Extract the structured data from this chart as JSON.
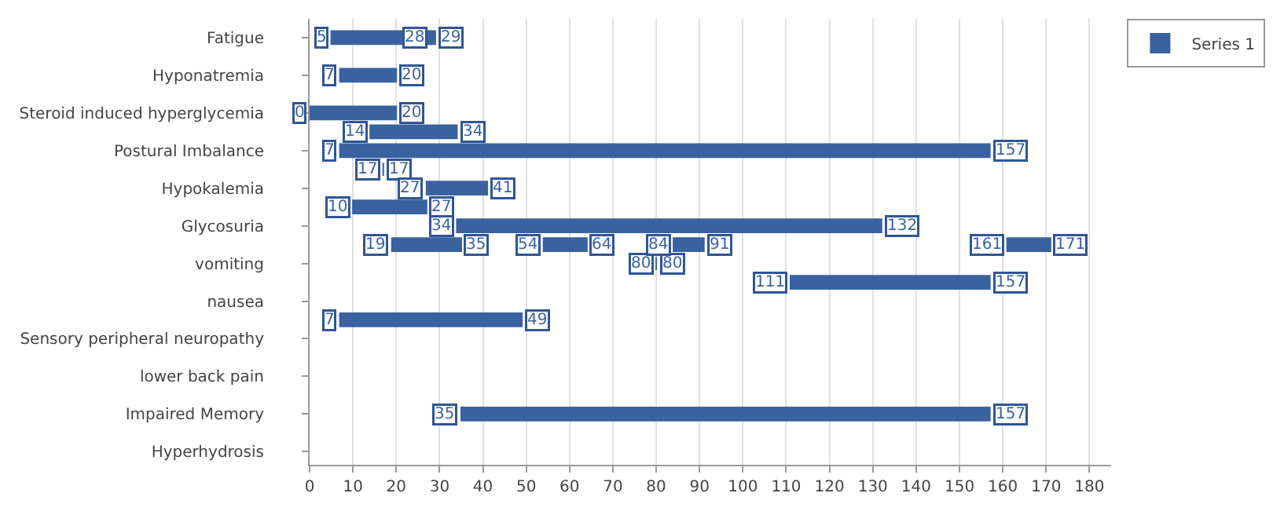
{
  "chart_data": {
    "type": "bar",
    "orientation": "horizontal",
    "categories": [
      "Fatigue",
      null,
      "Hyponatremia",
      null,
      "Steroid induced hyperglycemia",
      null,
      "Postural Imbalance",
      null,
      "Hypokalemia",
      null,
      "Glycosuria",
      null,
      "vomiting",
      null,
      "nausea",
      null,
      "Sensory peripheral neuropathy",
      null,
      "lower back pain",
      null,
      "Impaired Memory",
      null,
      "Hyperhydrosis"
    ],
    "series": [
      {
        "name": "Series 1",
        "color": "#3a62a0",
        "base": [
          5,
          null,
          7,
          null,
          0,
          14,
          7,
          17,
          27,
          10,
          34,
          19,
          80,
          111,
          null,
          7,
          null,
          null,
          null,
          null,
          35,
          null,
          null
        ],
        "values": [
          23,
          null,
          13,
          null,
          20,
          20,
          150,
          0,
          14,
          17,
          98,
          16,
          0,
          46,
          null,
          42,
          null,
          null,
          null,
          null,
          122,
          null,
          null
        ],
        "value_labels": [
          null,
          null,
          "20",
          null,
          "20",
          "34",
          "157",
          "17",
          "41",
          "27",
          "132",
          "35",
          "80",
          "157",
          null,
          "49",
          null,
          null,
          null,
          null,
          "157",
          null,
          null
        ]
      },
      {
        "color": "#3a62a0",
        "base": [
          28,
          null,
          null,
          null,
          null,
          null,
          null,
          null,
          null,
          null,
          null,
          54,
          null,
          null,
          null,
          null,
          null,
          null,
          null,
          null,
          null,
          null,
          null
        ],
        "values": [
          1,
          null,
          null,
          null,
          null,
          null,
          null,
          null,
          null,
          null,
          null,
          10,
          null,
          null,
          null,
          null,
          null,
          null,
          null,
          null,
          null,
          null,
          null
        ],
        "value_labels": [
          "29",
          null,
          null,
          null,
          null,
          null,
          null,
          null,
          null,
          null,
          null,
          "64",
          null,
          null,
          null,
          null,
          null,
          null,
          null,
          null,
          null,
          null,
          null
        ]
      },
      {
        "color": "#3a62a0",
        "base": [
          null,
          null,
          null,
          null,
          null,
          null,
          null,
          null,
          null,
          null,
          null,
          84,
          null,
          null,
          null,
          null,
          null,
          null,
          null,
          null,
          null,
          null,
          null
        ],
        "values": [
          null,
          null,
          null,
          null,
          null,
          null,
          null,
          null,
          null,
          null,
          null,
          7,
          null,
          null,
          null,
          null,
          null,
          null,
          null,
          null,
          null,
          null,
          null
        ],
        "value_labels": [
          null,
          null,
          null,
          null,
          null,
          null,
          null,
          null,
          null,
          null,
          null,
          "91",
          null,
          null,
          null,
          null,
          null,
          null,
          null,
          null,
          null,
          null,
          null
        ]
      },
      {
        "color": "#3a62a0",
        "base": [
          null,
          null,
          null,
          null,
          null,
          null,
          null,
          null,
          null,
          null,
          null,
          161,
          null,
          null,
          null,
          null,
          null,
          null,
          null,
          null,
          null,
          null,
          null
        ],
        "values": [
          null,
          null,
          null,
          null,
          null,
          null,
          null,
          null,
          null,
          null,
          null,
          10,
          null,
          null,
          null,
          null,
          null,
          null,
          null,
          null,
          null,
          null,
          null
        ],
        "value_labels": [
          null,
          null,
          null,
          null,
          null,
          null,
          null,
          null,
          null,
          null,
          null,
          "171",
          null,
          null,
          null,
          null,
          null,
          null,
          null,
          null,
          null,
          null,
          null
        ]
      }
    ],
    "annotations": [
      {
        "text": "5",
        "x": 5
      },
      {
        "text": "7",
        "x": 7
      },
      {
        "text": "0",
        "x": 0
      },
      {
        "text": "14",
        "x": 14
      },
      {
        "text": "7",
        "x": 7
      },
      {
        "text": "17",
        "x": 17
      },
      {
        "text": "27",
        "x": 27
      },
      {
        "text": "10",
        "x": 10
      },
      {
        "text": "34",
        "x": 34
      },
      {
        "text": "19",
        "x": 19
      },
      {
        "text": "80",
        "x": 80
      },
      {
        "text": "111",
        "x": 111
      },
      {
        "text": "7",
        "x": 7
      },
      {
        "text": "35",
        "x": 35
      },
      {
        "text": "28",
        "x": 28
      },
      {
        "text": "54",
        "x": 54
      },
      {
        "text": "84",
        "x": 84
      },
      {
        "text": "161",
        "x": 161
      }
    ],
    "xlim": [
      0,
      185
    ],
    "xticks": [
      0,
      10,
      20,
      30,
      40,
      50,
      60,
      70,
      80,
      90,
      100,
      110,
      120,
      130,
      140,
      150,
      160,
      170,
      180
    ],
    "grid": "x",
    "legend": "top right"
  }
}
